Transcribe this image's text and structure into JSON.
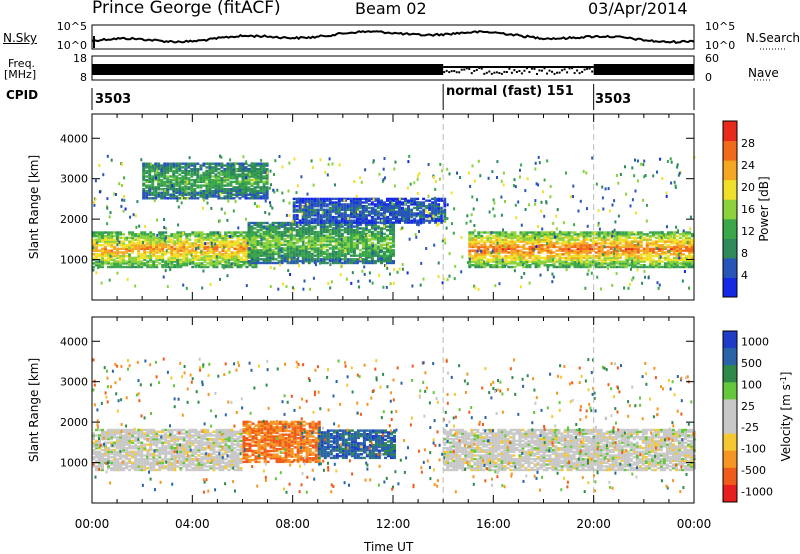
{
  "header": {
    "title": "Prince George (fitACF)",
    "beam": "Beam 02",
    "date": "03/Apr/2014"
  },
  "sky_panel": {
    "left_label": "N.Sky",
    "right_label": "N.Search",
    "left_ticks": [
      "10^5",
      "10^0"
    ],
    "right_ticks": [
      "10^5",
      "10^0"
    ]
  },
  "freq_panel": {
    "left_label_1": "Freq.",
    "left_label_2": "[MHz]",
    "right_label": "Nave",
    "left_ticks": [
      "18",
      "8"
    ],
    "right_ticks": [
      "60",
      "0"
    ]
  },
  "cpid_panel": {
    "label": "CPID",
    "segments": [
      {
        "text": "3503",
        "start_hour": 0
      },
      {
        "text": "normal (fast) 151",
        "start_hour": 14
      },
      {
        "text": "3503",
        "start_hour": 20
      }
    ]
  },
  "colors": {
    "power": [
      "#1428e6",
      "#2856b8",
      "#2e8a5a",
      "#3aa84a",
      "#8cd23c",
      "#f0e02a",
      "#f5a623",
      "#f06a1a",
      "#e82a1a"
    ],
    "velocity_pos": [
      "#1e3cc8",
      "#2a64a8",
      "#2e8a4a",
      "#64c83c"
    ],
    "velocity_zero": "#c8c8c8",
    "velocity_neg": [
      "#f5c832",
      "#f59623",
      "#f05a1a",
      "#e81e1e"
    ]
  },
  "chart_data": [
    {
      "type": "heatmap",
      "name": "power",
      "ylabel": "Slant Range [km]",
      "ylim": [
        0,
        4600
      ],
      "yticks": [
        1000,
        2000,
        3000,
        4000
      ],
      "xlim": [
        0,
        24
      ],
      "colorbar": {
        "label": "Power [dB]",
        "ticks": [
          4,
          8,
          12,
          16,
          20,
          24,
          28
        ],
        "range": [
          0,
          32
        ]
      },
      "approx_bands": [
        {
          "t0": 0,
          "t1": 6.5,
          "r0": 800,
          "r1": 1700,
          "level_db": 22
        },
        {
          "t0": 6.2,
          "t1": 12,
          "r0": 900,
          "r1": 1900,
          "level_db": 14
        },
        {
          "t0": 15,
          "t1": 24,
          "r0": 800,
          "r1": 1700,
          "level_db": 24
        },
        {
          "t0": 8,
          "t1": 14,
          "r0": 1900,
          "r1": 2500,
          "level_db": 6
        },
        {
          "t0": 2,
          "t1": 7,
          "r0": 2500,
          "r1": 3400,
          "level_db": 12
        }
      ]
    },
    {
      "type": "heatmap",
      "name": "velocity",
      "ylabel": "Slant Range [km]",
      "ylim": [
        0,
        4600
      ],
      "yticks": [
        1000,
        2000,
        3000,
        4000
      ],
      "xlim": [
        0,
        24
      ],
      "xlabel": "Time UT",
      "xticks": [
        "00:00",
        "04:00",
        "08:00",
        "12:00",
        "16:00",
        "20:00",
        "00:00"
      ],
      "colorbar": {
        "label": "Velocity [m s",
        "label_sup": "-1",
        "label_end": "]",
        "ticks": [
          "1000",
          "500",
          "100",
          "25",
          "-25",
          "-100",
          "-500",
          "-1000"
        ]
      },
      "approx_bands": [
        {
          "t0": 0,
          "t1": 6,
          "r0": 800,
          "r1": 1800,
          "velocity": 0
        },
        {
          "t0": 6,
          "t1": 9,
          "r0": 1000,
          "r1": 2000,
          "velocity": -300
        },
        {
          "t0": 9,
          "t1": 12,
          "r0": 1100,
          "r1": 1800,
          "velocity": 400
        },
        {
          "t0": 14,
          "t1": 24,
          "r0": 800,
          "r1": 1800,
          "velocity": 0
        }
      ]
    }
  ]
}
